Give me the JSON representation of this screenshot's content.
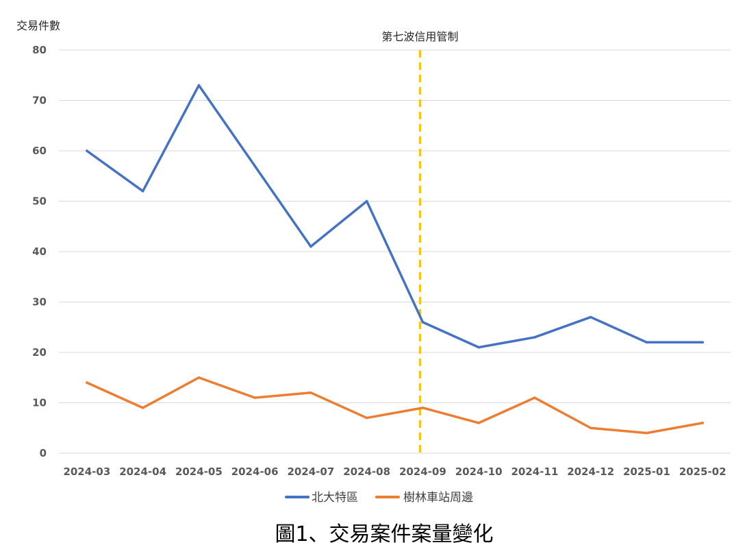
{
  "chart_data": {
    "type": "line",
    "caption": "圖1、交易案件案量變化",
    "ylabel": "交易件數",
    "xlabel": "",
    "ylim": [
      0,
      80
    ],
    "yticks": [
      0,
      10,
      20,
      30,
      40,
      50,
      60,
      70,
      80
    ],
    "grid": true,
    "legend_position": "bottom",
    "categories": [
      "2024-03",
      "2024-04",
      "2024-05",
      "2024-06",
      "2024-07",
      "2024-08",
      "2024-09",
      "2024-10",
      "2024-11",
      "2024-12",
      "2025-01",
      "2025-02"
    ],
    "series": [
      {
        "name": "北大特區",
        "color": "#4472c4",
        "values": [
          60,
          52,
          73,
          57,
          41,
          50,
          26,
          21,
          23,
          27,
          22,
          22
        ]
      },
      {
        "name": "樹林車站周邊",
        "color": "#ed7d31",
        "values": [
          14,
          9,
          15,
          11,
          12,
          7,
          9,
          6,
          11,
          5,
          4,
          6
        ]
      }
    ],
    "annotations": [
      {
        "category": "2024-09",
        "label": "第七波信用管制",
        "style": "dashed-vertical",
        "color": "#ffc000"
      }
    ]
  }
}
